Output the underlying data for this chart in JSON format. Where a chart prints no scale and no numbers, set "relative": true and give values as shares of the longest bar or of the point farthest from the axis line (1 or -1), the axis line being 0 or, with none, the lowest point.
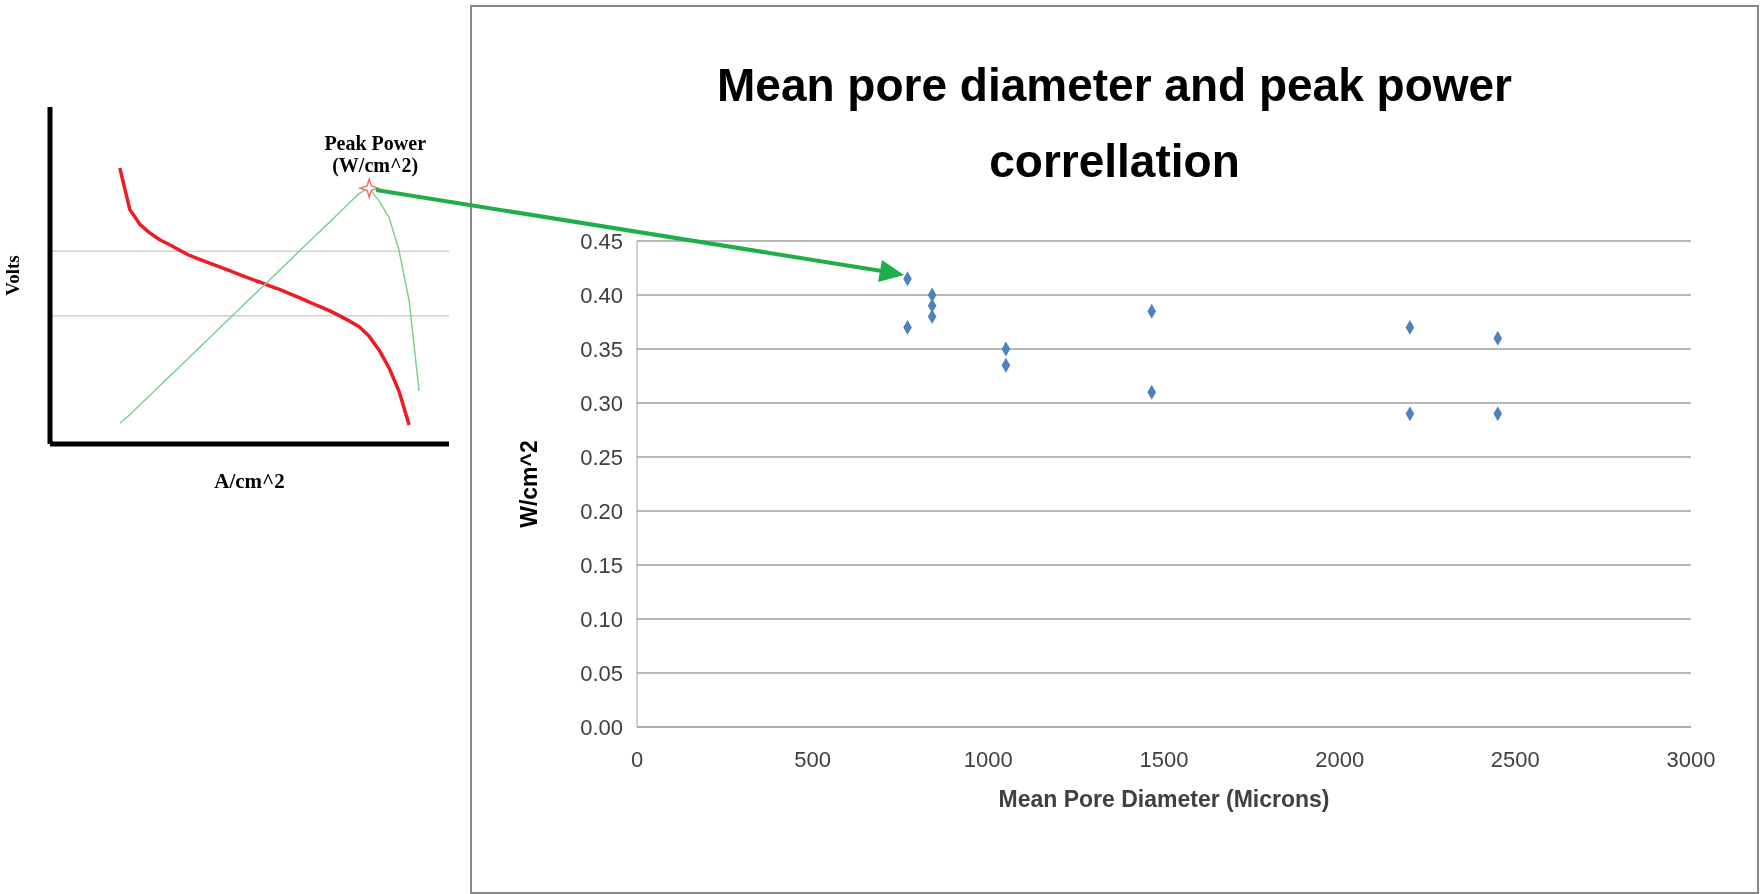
{
  "chart_data": [
    {
      "type": "line",
      "relative": true,
      "xlabel": "A/cm^2",
      "ylabel": "Volts",
      "marker": "none",
      "line_style": "solid",
      "legend": false,
      "categories": [
        null,
        null,
        null,
        null,
        null,
        null,
        null,
        null,
        null,
        null,
        null,
        null,
        null,
        null,
        null,
        null,
        null,
        null,
        null,
        null,
        null,
        null,
        null,
        null,
        null,
        null,
        null,
        null,
        null,
        null,
        null,
        null,
        null,
        null,
        null,
        null,
        null,
        null,
        null,
        null,
        null
      ],
      "series": [
        {
          "color": "#ee1c25",
          "values": [
            null,
            null,
            null,
            null,
            null,
            null,
            null,
            1.0,
            0.85,
            0.796,
            0.765,
            0.74,
            0.722,
            0.702,
            0.683,
            0.669,
            0.655,
            0.642,
            0.628,
            0.614,
            0.6,
            0.587,
            0.573,
            0.56,
            0.545,
            0.53,
            0.514,
            0.499,
            0.483,
            0.465,
            0.446,
            0.425,
            0.39,
            0.34,
            0.275,
            0.19,
            0.069,
            null,
            null,
            null,
            null
          ]
        },
        {
          "color": "#7fd08f",
          "values": [
            null,
            null,
            null,
            null,
            null,
            null,
            null,
            0.075,
            0.106,
            0.141,
            0.176,
            0.211,
            0.246,
            0.28,
            0.315,
            0.35,
            0.385,
            0.42,
            0.455,
            0.49,
            0.525,
            0.559,
            0.594,
            0.629,
            0.664,
            0.699,
            0.734,
            0.768,
            0.803,
            0.838,
            0.873,
            0.908,
            0.927,
            0.88,
            0.82,
            0.7,
            0.52,
            0.192,
            null,
            null,
            null
          ]
        }
      ],
      "ref_lines": [
        {
          "axis": "y",
          "value": 0.698,
          "color": "#d0d0d0"
        },
        {
          "axis": "y",
          "value": 0.465,
          "color": "#d0d0d0"
        }
      ],
      "annotations": [
        "Peak Power (W/cm^2)"
      ]
    },
    {
      "type": "scatter",
      "title": "Mean pore diameter and peak power correllation",
      "xlabel": "Mean Pore Diameter (Microns)",
      "ylabel": "W/cm^2",
      "marker": "diamond",
      "grid": "y",
      "legend": false,
      "xlim": [
        0,
        3000
      ],
      "xticks": [
        0,
        500,
        1000,
        1500,
        2000,
        2500,
        3000
      ],
      "ylim": [
        0,
        0.45
      ],
      "yticks": [
        {
          "value": 0,
          "label": "0.00"
        },
        {
          "value": 0.05,
          "label": "0.05"
        },
        {
          "value": 0.1,
          "label": "0.10"
        },
        {
          "value": 0.15,
          "label": "0.15"
        },
        {
          "value": 0.2,
          "label": "0.20"
        },
        {
          "value": 0.25,
          "label": "0.25"
        },
        {
          "value": 0.3,
          "label": "0.30"
        },
        {
          "value": 0.35,
          "label": "0.35"
        },
        {
          "value": 0.4,
          "label": "0.40"
        },
        {
          "value": 0.45,
          "label": "0.45"
        }
      ],
      "series": [
        {
          "color": "#4f81bd",
          "x": [
            770,
            840,
            840,
            840,
            770,
            1050,
            1050,
            1465,
            1465,
            2200,
            2200,
            2450,
            2450
          ],
          "values": [
            0.415,
            0.4,
            0.39,
            0.38,
            0.37,
            0.35,
            0.335,
            0.385,
            0.31,
            0.37,
            0.29,
            0.36,
            0.29
          ]
        }
      ]
    }
  ]
}
